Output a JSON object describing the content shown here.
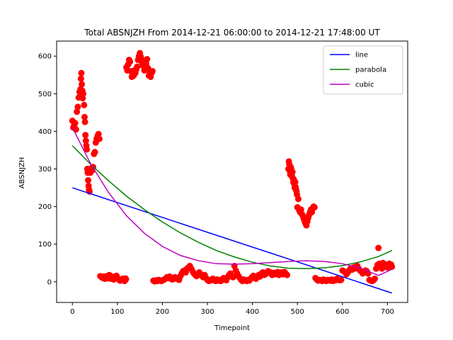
{
  "chart_data": {
    "type": "scatter",
    "title": "Total ABSNJZH From 2014-12-21 06:00:00 to 2014-12-21 17:48:00 UT",
    "xlabel": "Timepoint",
    "ylabel": "ABSNJZH",
    "xlim": [
      -35,
      745
    ],
    "ylim": [
      -55,
      640
    ],
    "xticks": [
      0,
      100,
      200,
      300,
      400,
      500,
      600,
      700
    ],
    "yticks": [
      0,
      100,
      200,
      300,
      400,
      500,
      600
    ],
    "grid": false,
    "legend_position": "top-right",
    "scatter_color": "#ff0000",
    "scatter_points": [
      [
        0,
        428
      ],
      [
        2,
        410
      ],
      [
        4,
        415
      ],
      [
        6,
        422
      ],
      [
        8,
        405
      ],
      [
        10,
        452
      ],
      [
        12,
        465
      ],
      [
        14,
        490
      ],
      [
        16,
        505
      ],
      [
        18,
        512
      ],
      [
        19,
        540
      ],
      [
        20,
        555
      ],
      [
        21,
        525
      ],
      [
        22,
        508
      ],
      [
        23,
        488
      ],
      [
        24,
        500
      ],
      [
        26,
        470
      ],
      [
        27,
        438
      ],
      [
        28,
        425
      ],
      [
        29,
        390
      ],
      [
        30,
        375
      ],
      [
        31,
        362
      ],
      [
        32,
        352
      ],
      [
        33,
        300
      ],
      [
        34,
        290
      ],
      [
        35,
        270
      ],
      [
        36,
        255
      ],
      [
        37,
        245
      ],
      [
        38,
        240
      ],
      [
        39,
        298
      ],
      [
        40,
        290
      ],
      [
        42,
        302
      ],
      [
        44,
        296
      ],
      [
        46,
        305
      ],
      [
        48,
        340
      ],
      [
        50,
        345
      ],
      [
        52,
        370
      ],
      [
        54,
        380
      ],
      [
        56,
        387
      ],
      [
        58,
        393
      ],
      [
        60,
        380
      ],
      [
        62,
        15
      ],
      [
        65,
        12
      ],
      [
        68,
        10
      ],
      [
        70,
        14
      ],
      [
        72,
        8
      ],
      [
        74,
        12
      ],
      [
        76,
        15
      ],
      [
        78,
        10
      ],
      [
        80,
        9
      ],
      [
        82,
        18
      ],
      [
        84,
        12
      ],
      [
        86,
        8
      ],
      [
        88,
        14
      ],
      [
        90,
        10
      ],
      [
        92,
        6
      ],
      [
        94,
        9
      ],
      [
        96,
        12
      ],
      [
        98,
        16
      ],
      [
        100,
        10
      ],
      [
        102,
        8
      ],
      [
        104,
        5
      ],
      [
        106,
        3
      ],
      [
        108,
        4
      ],
      [
        110,
        6
      ],
      [
        112,
        8
      ],
      [
        114,
        5
      ],
      [
        116,
        2
      ],
      [
        118,
        9
      ],
      [
        119,
        7
      ],
      [
        120,
        570
      ],
      [
        122,
        562
      ],
      [
        124,
        578
      ],
      [
        126,
        590
      ],
      [
        128,
        585
      ],
      [
        130,
        560
      ],
      [
        132,
        545
      ],
      [
        134,
        555
      ],
      [
        136,
        548
      ],
      [
        138,
        562
      ],
      [
        140,
        555
      ],
      [
        142,
        565
      ],
      [
        144,
        572
      ],
      [
        146,
        590
      ],
      [
        148,
        600
      ],
      [
        150,
        608
      ],
      [
        152,
        598
      ],
      [
        154,
        585
      ],
      [
        156,
        575
      ],
      [
        158,
        588
      ],
      [
        160,
        562
      ],
      [
        162,
        570
      ],
      [
        164,
        580
      ],
      [
        166,
        592
      ],
      [
        168,
        568
      ],
      [
        170,
        548
      ],
      [
        172,
        558
      ],
      [
        174,
        545
      ],
      [
        176,
        555
      ],
      [
        178,
        560
      ],
      [
        180,
        3
      ],
      [
        183,
        1
      ],
      [
        186,
        4
      ],
      [
        189,
        2
      ],
      [
        192,
        5
      ],
      [
        195,
        3
      ],
      [
        198,
        2
      ],
      [
        201,
        4
      ],
      [
        204,
        6
      ],
      [
        207,
        8
      ],
      [
        210,
        12
      ],
      [
        213,
        10
      ],
      [
        216,
        14
      ],
      [
        219,
        8
      ],
      [
        222,
        6
      ],
      [
        225,
        10
      ],
      [
        228,
        12
      ],
      [
        231,
        8
      ],
      [
        234,
        10
      ],
      [
        237,
        5
      ],
      [
        240,
        15
      ],
      [
        243,
        22
      ],
      [
        246,
        28
      ],
      [
        249,
        30
      ],
      [
        252,
        25
      ],
      [
        255,
        35
      ],
      [
        258,
        38
      ],
      [
        261,
        42
      ],
      [
        264,
        35
      ],
      [
        267,
        28
      ],
      [
        270,
        22
      ],
      [
        273,
        18
      ],
      [
        276,
        15
      ],
      [
        279,
        18
      ],
      [
        282,
        25
      ],
      [
        285,
        20
      ],
      [
        288,
        15
      ],
      [
        291,
        12
      ],
      [
        294,
        18
      ],
      [
        297,
        10
      ],
      [
        300,
        5
      ],
      [
        303,
        2
      ],
      [
        306,
        3
      ],
      [
        309,
        6
      ],
      [
        312,
        8
      ],
      [
        315,
        4
      ],
      [
        318,
        2
      ],
      [
        321,
        6
      ],
      [
        324,
        3
      ],
      [
        327,
        5
      ],
      [
        330,
        2
      ],
      [
        333,
        6
      ],
      [
        336,
        10
      ],
      [
        339,
        8
      ],
      [
        342,
        4
      ],
      [
        345,
        12
      ],
      [
        348,
        18
      ],
      [
        351,
        22
      ],
      [
        354,
        15
      ],
      [
        357,
        12
      ],
      [
        360,
        42
      ],
      [
        363,
        30
      ],
      [
        366,
        22
      ],
      [
        369,
        15
      ],
      [
        372,
        10
      ],
      [
        375,
        5
      ],
      [
        378,
        2
      ],
      [
        381,
        6
      ],
      [
        384,
        4
      ],
      [
        387,
        2
      ],
      [
        390,
        5
      ],
      [
        393,
        3
      ],
      [
        396,
        8
      ],
      [
        399,
        12
      ],
      [
        402,
        16
      ],
      [
        405,
        10
      ],
      [
        408,
        8
      ],
      [
        411,
        12
      ],
      [
        414,
        18
      ],
      [
        417,
        14
      ],
      [
        420,
        22
      ],
      [
        423,
        25
      ],
      [
        426,
        18
      ],
      [
        429,
        20
      ],
      [
        432,
        24
      ],
      [
        435,
        28
      ],
      [
        438,
        26
      ],
      [
        441,
        22
      ],
      [
        444,
        18
      ],
      [
        447,
        24
      ],
      [
        450,
        20
      ],
      [
        453,
        22
      ],
      [
        456,
        26
      ],
      [
        459,
        18
      ],
      [
        462,
        22
      ],
      [
        465,
        25
      ],
      [
        468,
        20
      ],
      [
        471,
        26
      ],
      [
        474,
        22
      ],
      [
        477,
        18
      ],
      [
        480,
        300
      ],
      [
        481,
        320
      ],
      [
        482,
        312
      ],
      [
        483,
        295
      ],
      [
        484,
        285
      ],
      [
        485,
        305
      ],
      [
        486,
        300
      ],
      [
        487,
        290
      ],
      [
        488,
        280
      ],
      [
        489,
        292
      ],
      [
        490,
        275
      ],
      [
        491,
        265
      ],
      [
        492,
        272
      ],
      [
        493,
        260
      ],
      [
        494,
        250
      ],
      [
        495,
        265
      ],
      [
        496,
        252
      ],
      [
        497,
        245
      ],
      [
        498,
        240
      ],
      [
        499,
        232
      ],
      [
        500,
        198
      ],
      [
        502,
        220
      ],
      [
        504,
        190
      ],
      [
        506,
        185
      ],
      [
        508,
        192
      ],
      [
        510,
        180
      ],
      [
        512,
        175
      ],
      [
        514,
        168
      ],
      [
        516,
        160
      ],
      [
        518,
        155
      ],
      [
        520,
        150
      ],
      [
        522,
        160
      ],
      [
        524,
        170
      ],
      [
        526,
        178
      ],
      [
        528,
        185
      ],
      [
        530,
        192
      ],
      [
        532,
        185
      ],
      [
        534,
        195
      ],
      [
        536,
        200
      ],
      [
        538,
        198
      ],
      [
        540,
        10
      ],
      [
        543,
        6
      ],
      [
        546,
        3
      ],
      [
        549,
        5
      ],
      [
        552,
        4
      ],
      [
        555,
        2
      ],
      [
        558,
        6
      ],
      [
        561,
        3
      ],
      [
        564,
        2
      ],
      [
        567,
        5
      ],
      [
        570,
        4
      ],
      [
        573,
        3
      ],
      [
        576,
        6
      ],
      [
        579,
        2
      ],
      [
        582,
        5
      ],
      [
        585,
        4
      ],
      [
        588,
        8
      ],
      [
        591,
        6
      ],
      [
        594,
        4
      ],
      [
        597,
        5
      ],
      [
        600,
        30
      ],
      [
        603,
        28
      ],
      [
        606,
        25
      ],
      [
        609,
        20
      ],
      [
        612,
        25
      ],
      [
        615,
        30
      ],
      [
        618,
        35
      ],
      [
        621,
        32
      ],
      [
        624,
        38
      ],
      [
        627,
        35
      ],
      [
        630,
        40
      ],
      [
        633,
        42
      ],
      [
        636,
        35
      ],
      [
        639,
        30
      ],
      [
        642,
        28
      ],
      [
        645,
        22
      ],
      [
        648,
        25
      ],
      [
        651,
        30
      ],
      [
        654,
        28
      ],
      [
        657,
        22
      ],
      [
        660,
        5
      ],
      [
        663,
        3
      ],
      [
        666,
        2
      ],
      [
        669,
        4
      ],
      [
        672,
        8
      ],
      [
        675,
        35
      ],
      [
        678,
        45
      ],
      [
        680,
        90
      ],
      [
        682,
        48
      ],
      [
        684,
        38
      ],
      [
        686,
        42
      ],
      [
        688,
        35
      ],
      [
        690,
        50
      ],
      [
        692,
        48
      ],
      [
        694,
        40
      ],
      [
        696,
        45
      ],
      [
        698,
        42
      ],
      [
        700,
        38
      ],
      [
        702,
        45
      ],
      [
        704,
        48
      ],
      [
        706,
        42
      ],
      [
        708,
        46
      ],
      [
        710,
        40
      ]
    ],
    "series": [
      {
        "name": "line",
        "color": "#0000ff",
        "x": [
          0,
          710
        ],
        "y": [
          250,
          -30
        ]
      },
      {
        "name": "parabola",
        "color": "#008000",
        "x": [
          0,
          40,
          80,
          120,
          160,
          200,
          240,
          280,
          320,
          360,
          400,
          440,
          480,
          520,
          560,
          600,
          640,
          680,
          710
        ],
        "y": [
          362,
          313,
          269,
          228,
          192,
          159,
          130,
          105,
          83,
          66,
          52,
          42,
          36,
          35,
          37,
          43,
          53,
          67,
          83
        ]
      },
      {
        "name": "cubic",
        "color": "#bf00bf",
        "x": [
          0,
          40,
          80,
          120,
          160,
          200,
          240,
          280,
          320,
          360,
          400,
          440,
          480,
          520,
          560,
          600,
          640,
          680,
          710
        ],
        "y": [
          410,
          315,
          238,
          176,
          129,
          94,
          70,
          56,
          48,
          47,
          48,
          51,
          54,
          56,
          54,
          48,
          36,
          17,
          33
        ]
      }
    ]
  }
}
